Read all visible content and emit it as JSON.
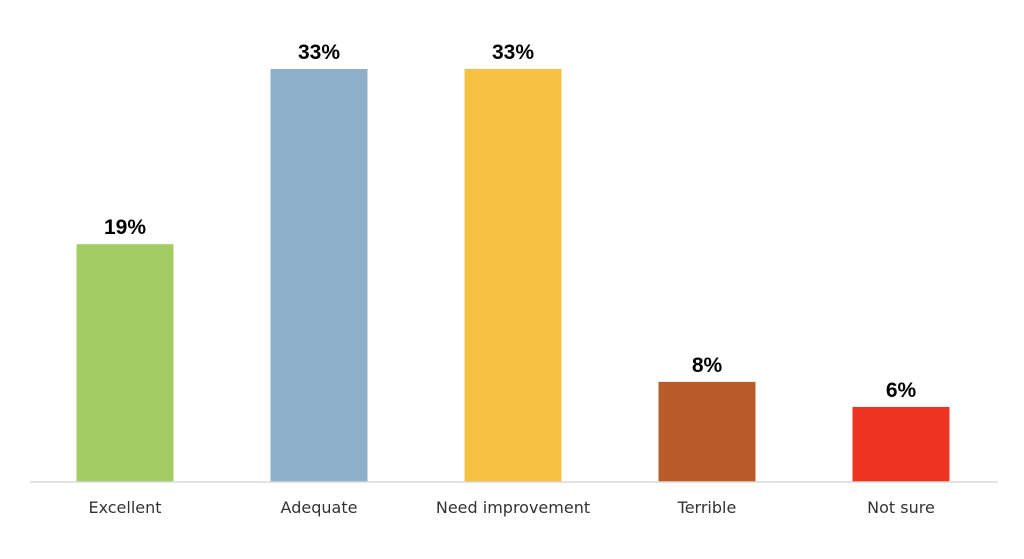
{
  "chart_data": {
    "type": "bar",
    "categories": [
      "Excellent",
      "Adequate",
      "Need improvement",
      "Terrible",
      "Not sure"
    ],
    "values": [
      19,
      33,
      33,
      8,
      6
    ],
    "value_labels": [
      "19%",
      "33%",
      "33%",
      "8%",
      "6%"
    ],
    "unit": "%",
    "colors": [
      "#a2cd63",
      "#8eafc9",
      "#f4c143",
      "#b85c29",
      "#ee3524"
    ],
    "title": "",
    "xlabel": "",
    "ylabel": "",
    "ylim": [
      0,
      33
    ],
    "grid": false,
    "legend": "none"
  }
}
